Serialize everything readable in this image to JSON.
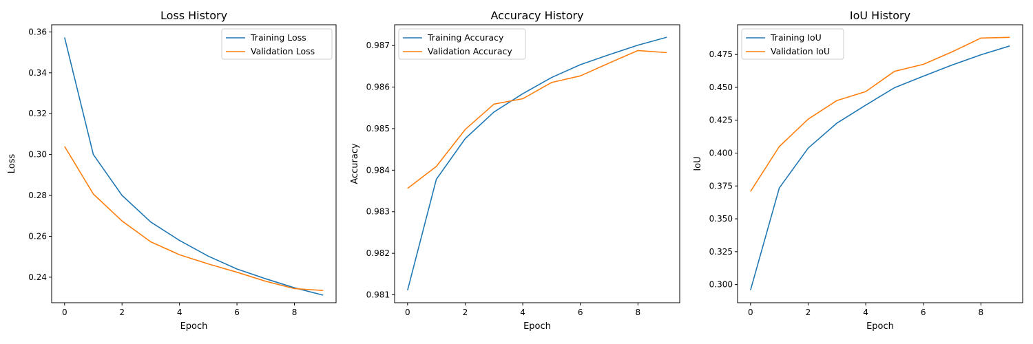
{
  "figure": {
    "series_colors": [
      "#1f77b4",
      "#ff7f0e"
    ],
    "line_color": "#000000"
  },
  "chart_data": [
    {
      "type": "line",
      "title": "Loss History",
      "xlabel": "Epoch",
      "ylabel": "Loss",
      "x": [
        0,
        1,
        2,
        3,
        4,
        5,
        6,
        7,
        8,
        9
      ],
      "series": [
        {
          "name": "Training Loss",
          "color": "#1f77b4",
          "values": [
            0.3573,
            0.3,
            0.28,
            0.267,
            0.258,
            0.2503,
            0.244,
            0.2392,
            0.2348,
            0.2312
          ]
        },
        {
          "name": "Validation Loss",
          "color": "#ff7f0e",
          "values": [
            0.304,
            0.2807,
            0.2675,
            0.2573,
            0.251,
            0.2465,
            0.2424,
            0.238,
            0.2344,
            0.2335
          ]
        }
      ],
      "xlim": [
        -0.45,
        9.45
      ],
      "ylim": [
        0.2275,
        0.3635
      ],
      "xticks": [
        0,
        2,
        4,
        6,
        8
      ],
      "xtick_labels": [
        "0",
        "2",
        "4",
        "6",
        "8"
      ],
      "yticks": [
        0.24,
        0.26,
        0.28,
        0.3,
        0.32,
        0.34,
        0.36
      ],
      "ytick_labels": [
        "0.24",
        "0.26",
        "0.28",
        "0.30",
        "0.32",
        "0.34",
        "0.36"
      ],
      "grid": false,
      "legend": "upper-right"
    },
    {
      "type": "line",
      "title": "Accuracy History",
      "xlabel": "Epoch",
      "ylabel": "Accuracy",
      "x": [
        0,
        1,
        2,
        3,
        4,
        5,
        6,
        7,
        8,
        9
      ],
      "series": [
        {
          "name": "Training Accuracy",
          "color": "#1f77b4",
          "values": [
            0.98111,
            0.98378,
            0.98476,
            0.9854,
            0.98584,
            0.98623,
            0.98654,
            0.98678,
            0.98701,
            0.9872
          ]
        },
        {
          "name": "Validation Accuracy",
          "color": "#ff7f0e",
          "values": [
            0.98356,
            0.98409,
            0.98498,
            0.98559,
            0.98572,
            0.98611,
            0.98627,
            0.98658,
            0.98688,
            0.98683
          ]
        }
      ],
      "xlim": [
        -0.45,
        9.45
      ],
      "ylim": [
        0.98081,
        0.9875
      ],
      "xticks": [
        0,
        2,
        4,
        6,
        8
      ],
      "xtick_labels": [
        "0",
        "2",
        "4",
        "6",
        "8"
      ],
      "yticks": [
        0.981,
        0.982,
        0.983,
        0.984,
        0.985,
        0.986,
        0.987
      ],
      "ytick_labels": [
        "0.981",
        "0.982",
        "0.983",
        "0.984",
        "0.985",
        "0.986",
        "0.987"
      ],
      "grid": false,
      "legend": "upper-left"
    },
    {
      "type": "line",
      "title": "IoU History",
      "xlabel": "Epoch",
      "ylabel": "IoU",
      "x": [
        0,
        1,
        2,
        3,
        4,
        5,
        6,
        7,
        8,
        9
      ],
      "series": [
        {
          "name": "Training IoU",
          "color": "#1f77b4",
          "values": [
            0.2958,
            0.3735,
            0.4038,
            0.4228,
            0.4365,
            0.4497,
            0.4585,
            0.467,
            0.4748,
            0.4815
          ]
        },
        {
          "name": "Validation IoU",
          "color": "#ff7f0e",
          "values": [
            0.3708,
            0.405,
            0.4258,
            0.44,
            0.4468,
            0.4622,
            0.4675,
            0.477,
            0.4875,
            0.488
          ]
        }
      ],
      "xlim": [
        -0.45,
        9.45
      ],
      "ylim": [
        0.2862,
        0.4976
      ],
      "xticks": [
        0,
        2,
        4,
        6,
        8
      ],
      "xtick_labels": [
        "0",
        "2",
        "4",
        "6",
        "8"
      ],
      "yticks": [
        0.3,
        0.325,
        0.35,
        0.375,
        0.4,
        0.425,
        0.45,
        0.475
      ],
      "ytick_labels": [
        "0.300",
        "0.325",
        "0.350",
        "0.375",
        "0.400",
        "0.425",
        "0.450",
        "0.475"
      ],
      "grid": false,
      "legend": "upper-left"
    }
  ]
}
